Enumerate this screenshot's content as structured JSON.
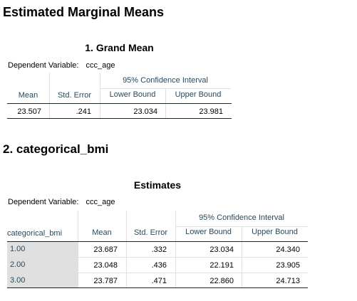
{
  "heading": "Estimated Marginal Means",
  "grand_mean": {
    "title": "1. Grand Mean",
    "dependent_label": "Dependent Variable:",
    "dependent_value": "ccc_age",
    "ci_header": "95% Confidence Interval",
    "columns": [
      "Mean",
      "Std. Error",
      "Lower Bound",
      "Upper Bound"
    ],
    "row": [
      "23.507",
      ".241",
      "23.034",
      "23.981"
    ]
  },
  "section2": {
    "heading": "2. categorical_bmi",
    "title": "Estimates",
    "dependent_label": "Dependent Variable:",
    "dependent_value": "ccc_age",
    "ci_header": "95% Confidence Interval",
    "columns": [
      "categorical_bmi",
      "Mean",
      "Std. Error",
      "Lower Bound",
      "Upper Bound"
    ],
    "rows": [
      [
        "1.00",
        "23.687",
        ".332",
        "23.034",
        "24.340"
      ],
      [
        "2.00",
        "23.048",
        ".436",
        "22.191",
        "23.905"
      ],
      [
        "3.00",
        "23.787",
        ".471",
        "22.860",
        "24.713"
      ]
    ]
  }
}
